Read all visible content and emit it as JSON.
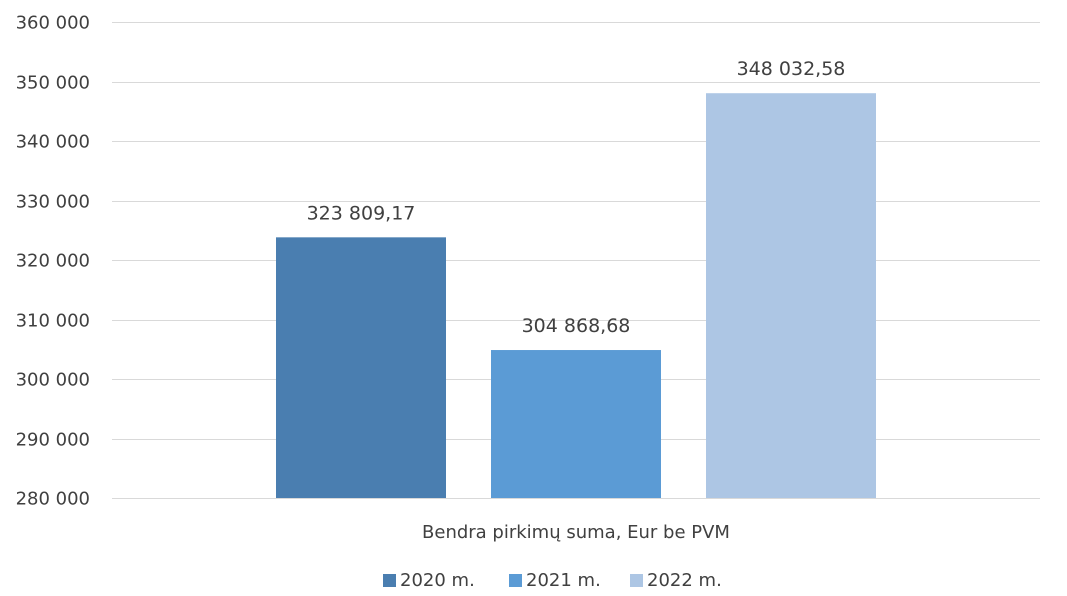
{
  "chart_data": {
    "type": "bar",
    "categories": [
      "Bendra pirkimų suma, Eur be PVM"
    ],
    "series": [
      {
        "name": "2020 m.",
        "values": [
          323809.17
        ],
        "label": "323 809,17",
        "color": "#4A7EB0"
      },
      {
        "name": "2021 m.",
        "values": [
          304868.68
        ],
        "label": "304 868,68",
        "color": "#5B9BD5"
      },
      {
        "name": "2022 m.",
        "values": [
          348032.58
        ],
        "label": "348 032,58",
        "color": "#ADC6E4"
      }
    ],
    "title": "",
    "xlabel": "",
    "ylabel": "",
    "ylim": [
      280000,
      360000
    ],
    "yticks": [
      {
        "value": 280000,
        "label": "280 000"
      },
      {
        "value": 290000,
        "label": "290 000"
      },
      {
        "value": 300000,
        "label": "300 000"
      },
      {
        "value": 310000,
        "label": "310 000"
      },
      {
        "value": 320000,
        "label": "320 000"
      },
      {
        "value": 330000,
        "label": "330 000"
      },
      {
        "value": 340000,
        "label": "340 000"
      },
      {
        "value": 350000,
        "label": "350 000"
      },
      {
        "value": 360000,
        "label": "360 000"
      }
    ],
    "grid": true,
    "legend_position": "bottom"
  }
}
